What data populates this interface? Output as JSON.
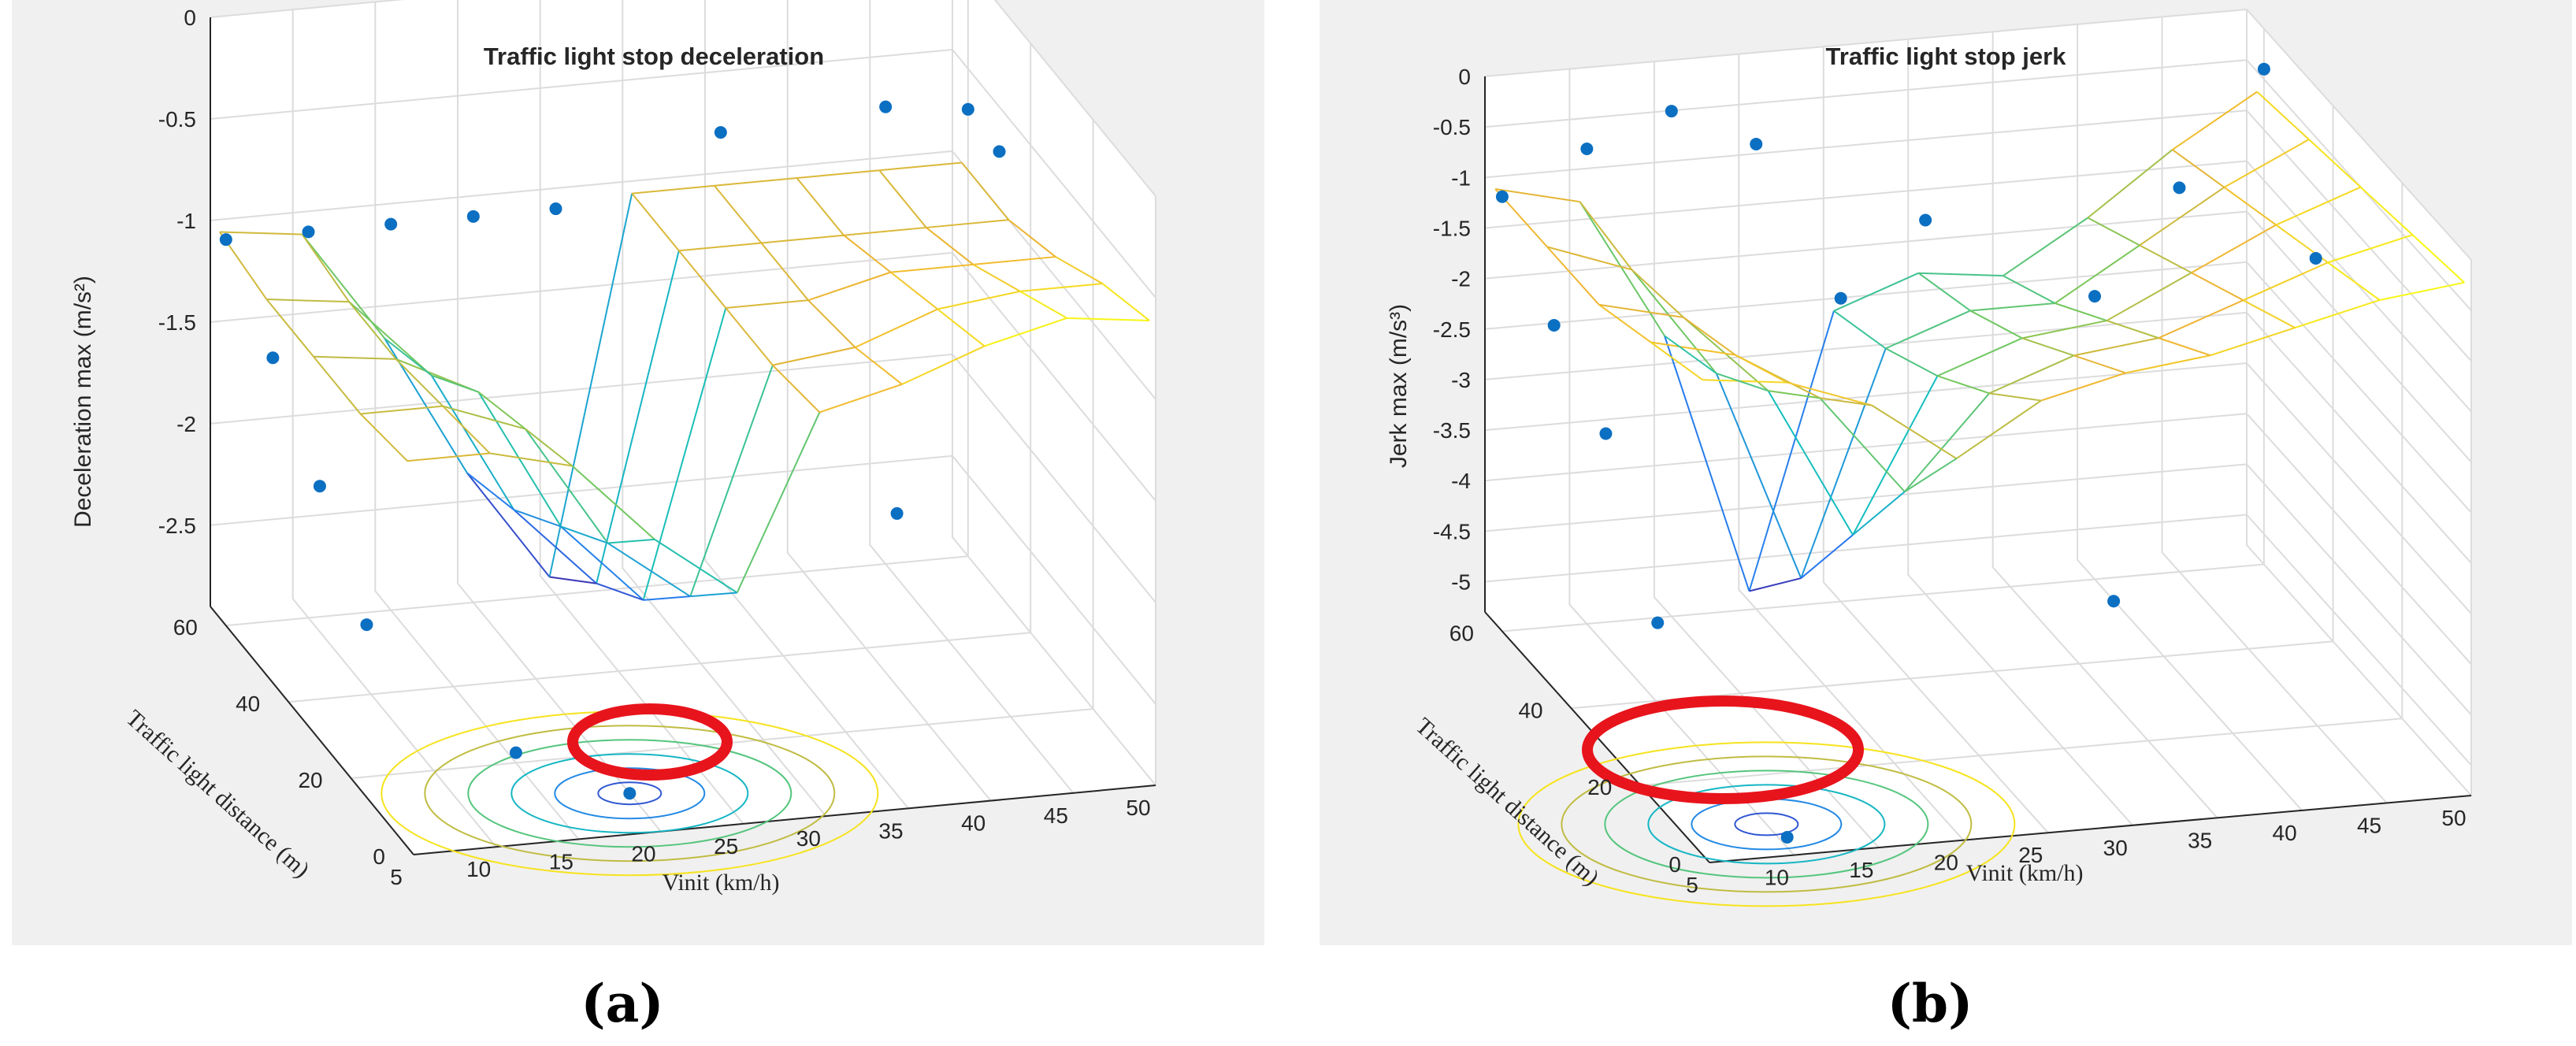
{
  "figure": {
    "caption_a": "(a)",
    "caption_b": "(b)"
  },
  "chart_data": [
    {
      "type": "surface3d",
      "title": "Traffic light stop deceleration",
      "xlabel": "Vinit (km/h)",
      "ylabel": "Traffic light distance (m)",
      "zlabel": "Deceleration max (m/s²)",
      "x_ticks": [
        "5",
        "10",
        "15",
        "20",
        "25",
        "30",
        "35",
        "40",
        "45",
        "50"
      ],
      "y_ticks": [
        "0",
        "20",
        "40",
        "60"
      ],
      "z_ticks": [
        "0",
        "-0.5",
        "-1",
        "-1.5",
        "-2",
        "-2.5"
      ],
      "xlim": [
        5,
        50
      ],
      "ylim": [
        0,
        65
      ],
      "zlim": [
        -2.9,
        0
      ],
      "grid": true,
      "colormap": "parula",
      "surface_rows": [
        [
          -1.0,
          -1.05,
          -1.6,
          -2.3,
          -2.85,
          -1.0,
          -1.0,
          -1.0,
          -1.0,
          -1.0
        ],
        [
          -1.05,
          -1.1,
          -1.5,
          -2.2,
          -2.6,
          -1.0,
          -1.0,
          -1.0,
          -1.0,
          -1.0
        ],
        [
          -1.05,
          -1.1,
          -1.3,
          -2.0,
          -2.4,
          -1.0,
          -1.0,
          -0.9,
          -0.9,
          -0.9
        ],
        [
          -1.05,
          -1.05,
          -1.2,
          -1.8,
          -2.1,
          -1.0,
          -0.95,
          -0.8,
          -0.75,
          -0.75
        ],
        [
          -1.0,
          -1.0,
          -1.1,
          -1.5,
          -1.8,
          -0.95,
          -0.85,
          -0.7,
          -0.6,
          -0.65
        ]
      ],
      "scatter": [
        {
          "x": 5,
          "y": 60,
          "z": -1.0
        },
        {
          "x": 5,
          "y": 45,
          "z": -1.3
        },
        {
          "x": 5,
          "y": 30,
          "z": -1.65
        },
        {
          "x": 5,
          "y": 15,
          "z": -2.05
        },
        {
          "x": 10,
          "y": 60,
          "z": -1.0
        },
        {
          "x": 15,
          "y": 60,
          "z": -1.0
        },
        {
          "x": 20,
          "y": 60,
          "z": -1.0
        },
        {
          "x": 25,
          "y": 60,
          "z": -1.0
        },
        {
          "x": 35,
          "y": 60,
          "z": -0.7
        },
        {
          "x": 45,
          "y": 60,
          "z": -0.65
        },
        {
          "x": 50,
          "y": 60,
          "z": -0.7
        },
        {
          "x": 50,
          "y": 50,
          "z": -0.72
        },
        {
          "x": 40,
          "y": 30,
          "z": -2.05
        },
        {
          "x": 15,
          "y": 20,
          "z": -2.85
        },
        {
          "x": 20,
          "y": 10,
          "z": -2.9
        }
      ],
      "highlight": {
        "x": 20,
        "y": 10
      }
    },
    {
      "type": "surface3d",
      "title": "Traffic light stop jerk",
      "xlabel": "Vinit (km/h)",
      "ylabel": "Traffic light distance (m)",
      "zlabel": "Jerk max (m/s³)",
      "x_ticks": [
        "5",
        "10",
        "15",
        "20",
        "25",
        "30",
        "35",
        "40",
        "45",
        "50"
      ],
      "y_ticks": [
        "0",
        "20",
        "40",
        "60"
      ],
      "z_ticks": [
        "0",
        "-0.5",
        "-1",
        "-1.5",
        "-2",
        "-2.5",
        "-3",
        "-3.5",
        "-4",
        "-4.5",
        "-5"
      ],
      "xlim": [
        5,
        50
      ],
      "ylim": [
        0,
        65
      ],
      "zlim": [
        -5.3,
        0
      ],
      "grid": true,
      "colormap": "parula",
      "surface_rows": [
        [
          -1.0,
          -1.2,
          -2.6,
          -5.2,
          -2.5,
          -2.2,
          -2.3,
          -1.8,
          -1.2,
          -0.7
        ],
        [
          -1.0,
          -1.3,
          -2.4,
          -4.5,
          -2.3,
          -2.0,
          -2.0,
          -1.5,
          -1.0,
          -0.6
        ],
        [
          -1.0,
          -1.2,
          -2.0,
          -3.5,
          -2.0,
          -1.7,
          -1.6,
          -1.2,
          -0.8,
          -0.5
        ],
        [
          -0.8,
          -1.0,
          -1.5,
          -2.5,
          -1.6,
          -1.3,
          -1.2,
          -0.9,
          -0.6,
          -0.4
        ],
        [
          -0.6,
          -0.7,
          -1.0,
          -1.6,
          -1.1,
          -0.9,
          -0.8,
          -0.6,
          -0.4,
          -0.3
        ]
      ],
      "scatter": [
        {
          "x": 5,
          "y": 60,
          "z": -1.0
        },
        {
          "x": 5,
          "y": 45,
          "z": -1.7
        },
        {
          "x": 5,
          "y": 30,
          "z": -2.2
        },
        {
          "x": 5,
          "y": 15,
          "z": -3.5
        },
        {
          "x": 10,
          "y": 60,
          "z": -0.6
        },
        {
          "x": 15,
          "y": 60,
          "z": -0.3
        },
        {
          "x": 20,
          "y": 60,
          "z": -0.7
        },
        {
          "x": 30,
          "y": 60,
          "z": -1.6
        },
        {
          "x": 40,
          "y": 60,
          "z": -2.5
        },
        {
          "x": 45,
          "y": 60,
          "z": -1.5
        },
        {
          "x": 50,
          "y": 60,
          "z": -0.4
        },
        {
          "x": 50,
          "y": 45,
          "z": -1.7
        },
        {
          "x": 25,
          "y": 60,
          "z": -2.3
        },
        {
          "x": 35,
          "y": 30,
          "z": -4.3
        },
        {
          "x": 10,
          "y": 2,
          "z": -5.2
        }
      ],
      "highlight": {
        "x": 10,
        "y": 8
      }
    }
  ]
}
